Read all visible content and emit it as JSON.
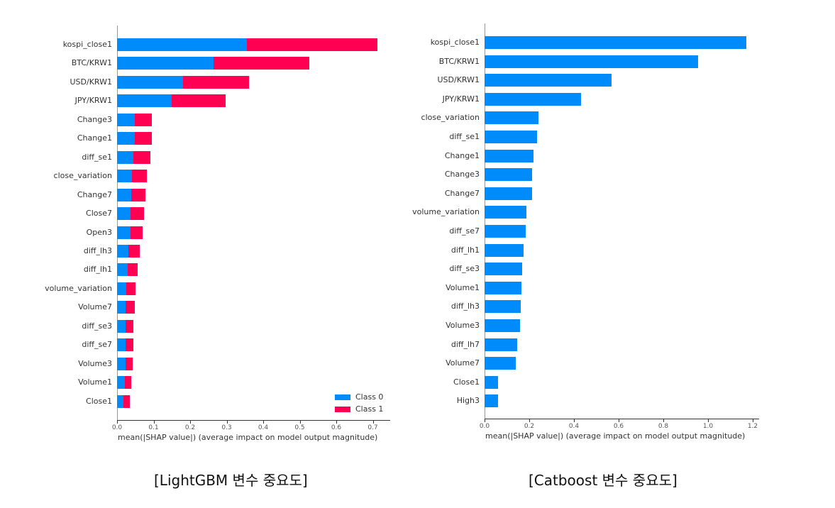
{
  "colors": {
    "class0": "#008BFB",
    "class1": "#FF0052",
    "single": "#008BFB"
  },
  "captions": {
    "left": "[LightGBM  변수  중요도]",
    "right": "[Catboost  변수  중요도]"
  },
  "chart_data": [
    {
      "type": "bar",
      "orientation": "horizontal",
      "stacked": true,
      "title": "",
      "xlabel": "mean(|SHAP value|) (average impact on model output magnitude)",
      "ylabel": "",
      "xlim": [
        0,
        0.75
      ],
      "xticks": [
        "0.0",
        "0.1",
        "0.2",
        "0.3",
        "0.4",
        "0.5",
        "0.6",
        "0.7"
      ],
      "legend": {
        "position": "lower right",
        "entries": [
          "Class 0",
          "Class 1"
        ]
      },
      "categories": [
        "kospi_close1",
        "BTC/KRW1",
        "USD/KRW1",
        "JPY/KRW1",
        "Change3",
        "Change1",
        "diff_se1",
        "close_variation",
        "Change7",
        "Close7",
        "Open3",
        "diff_lh3",
        "diff_lh1",
        "volume_variation",
        "Volume7",
        "diff_se3",
        "diff_se7",
        "Volume3",
        "Volume1",
        "Close1"
      ],
      "series": [
        {
          "name": "Class 0",
          "values": [
            0.355,
            0.264,
            0.181,
            0.15,
            0.049,
            0.049,
            0.045,
            0.041,
            0.039,
            0.037,
            0.036,
            0.031,
            0.029,
            0.025,
            0.024,
            0.023,
            0.023,
            0.023,
            0.021,
            0.017
          ]
        },
        {
          "name": "Class 1",
          "values": [
            0.358,
            0.262,
            0.18,
            0.147,
            0.046,
            0.046,
            0.046,
            0.041,
            0.039,
            0.037,
            0.034,
            0.031,
            0.027,
            0.025,
            0.024,
            0.021,
            0.021,
            0.019,
            0.018,
            0.018
          ]
        }
      ]
    },
    {
      "type": "bar",
      "orientation": "horizontal",
      "stacked": false,
      "title": "",
      "xlabel": "mean(|SHAP value|) (average impact on model output magnitude)",
      "ylabel": "",
      "xlim": [
        0,
        1.23
      ],
      "xticks": [
        "0.0",
        "0.2",
        "0.4",
        "0.6",
        "0.8",
        "1.0",
        "1.2"
      ],
      "categories": [
        "kospi_close1",
        "BTC/KRW1",
        "USD/KRW1",
        "JPY/KRW1",
        "close_variation",
        "diff_se1",
        "Change1",
        "Change3",
        "Change7",
        "volume_variation",
        "diff_se7",
        "diff_lh1",
        "diff_se3",
        "Volume1",
        "diff_lh3",
        "Volume3",
        "diff_lh7",
        "Volume7",
        "Close1",
        "High3"
      ],
      "values": [
        1.171,
        0.955,
        0.568,
        0.431,
        0.241,
        0.234,
        0.219,
        0.213,
        0.213,
        0.187,
        0.184,
        0.174,
        0.168,
        0.165,
        0.162,
        0.158,
        0.146,
        0.14,
        0.06,
        0.06
      ]
    }
  ]
}
